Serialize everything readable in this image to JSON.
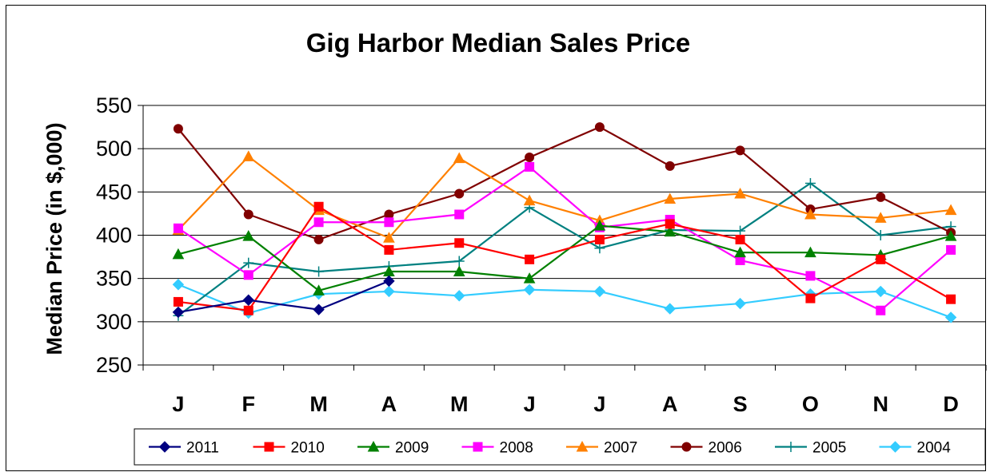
{
  "chart_data": {
    "type": "line",
    "title": "Gig Harbor Median Sales Price",
    "ylabel": "Median Price (in $,000)",
    "xlabel": "",
    "ylim": [
      250,
      550
    ],
    "yticks": [
      250,
      300,
      350,
      400,
      450,
      500,
      550
    ],
    "categories": [
      "J",
      "F",
      "M",
      "A",
      "M",
      "J",
      "J",
      "A",
      "S",
      "O",
      "N",
      "D"
    ],
    "grid": "horizontal",
    "legend_position": "bottom",
    "series": [
      {
        "name": "2011",
        "color": "#000080",
        "marker": "diamond",
        "values": [
          311,
          325,
          314,
          347,
          null,
          null,
          null,
          null,
          null,
          null,
          null,
          null
        ]
      },
      {
        "name": "2010",
        "color": "#ff0000",
        "marker": "square",
        "values": [
          323,
          313,
          433,
          383,
          391,
          372,
          395,
          413,
          395,
          327,
          372,
          326
        ]
      },
      {
        "name": "2009",
        "color": "#008000",
        "marker": "triangle",
        "values": [
          378,
          399,
          336,
          358,
          358,
          350,
          411,
          404,
          380,
          380,
          377,
          399
        ]
      },
      {
        "name": "2008",
        "color": "#ff00ff",
        "marker": "square",
        "values": [
          408,
          354,
          415,
          415,
          424,
          479,
          409,
          418,
          371,
          353,
          313,
          383
        ]
      },
      {
        "name": "2007",
        "color": "#ff8000",
        "marker": "triangle",
        "values": [
          406,
          491,
          429,
          397,
          489,
          440,
          417,
          442,
          448,
          424,
          420,
          429
        ]
      },
      {
        "name": "2006",
        "color": "#800000",
        "marker": "circle",
        "values": [
          523,
          424,
          395,
          424,
          448,
          490,
          525,
          480,
          498,
          430,
          444,
          403
        ]
      },
      {
        "name": "2005",
        "color": "#008080",
        "marker": "plus",
        "values": [
          307,
          368,
          358,
          364,
          370,
          432,
          385,
          406,
          405,
          460,
          400,
          410
        ]
      },
      {
        "name": "2004",
        "color": "#33ccff",
        "marker": "diamond",
        "values": [
          343,
          310,
          332,
          335,
          330,
          337,
          335,
          315,
          321,
          332,
          335,
          305
        ]
      }
    ]
  }
}
